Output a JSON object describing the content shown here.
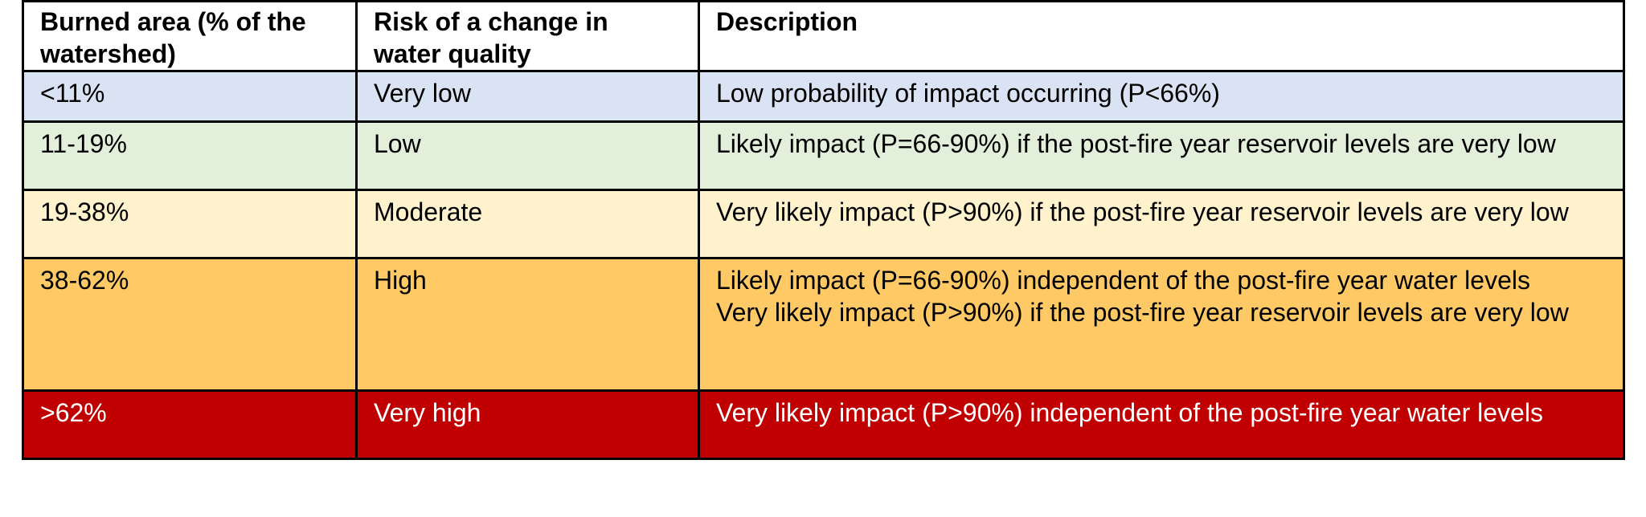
{
  "table": {
    "headers": {
      "burned_area": "Burned area (% of the watershed)",
      "risk": "Risk of a change in water quality",
      "description": "Description"
    },
    "rows": [
      {
        "burned_area": "<11%",
        "risk": "Very low",
        "description": [
          "Low probability of impact occurring (P<66%)"
        ],
        "bg_color": "#dae3f3",
        "text_color": "#000000"
      },
      {
        "burned_area": "11-19%",
        "risk": "Low",
        "description": [
          "Likely impact (P=66-90%) if the post-fire year reservoir levels are very low"
        ],
        "bg_color": "#e2efda",
        "text_color": "#000000"
      },
      {
        "burned_area": "19-38%",
        "risk": "Moderate",
        "description": [
          "Very likely impact (P>90%) if the post-fire year reservoir levels are very low"
        ],
        "bg_color": "#fff2cc",
        "text_color": "#000000"
      },
      {
        "burned_area": "38-62%",
        "risk": "High",
        "description": [
          "Likely impact (P=66-90%) independent of the post-fire year water levels",
          "Very likely impact (P>90%) if the post-fire year reservoir levels are very low"
        ],
        "bg_color": "#ffc966",
        "text_color": "#000000"
      },
      {
        "burned_area": ">62%",
        "risk": "Very high",
        "description": [
          "Very likely impact (P>90%) independent of the post-fire year water levels"
        ],
        "bg_color": "#c00000",
        "text_color": "#ffffff"
      }
    ]
  }
}
